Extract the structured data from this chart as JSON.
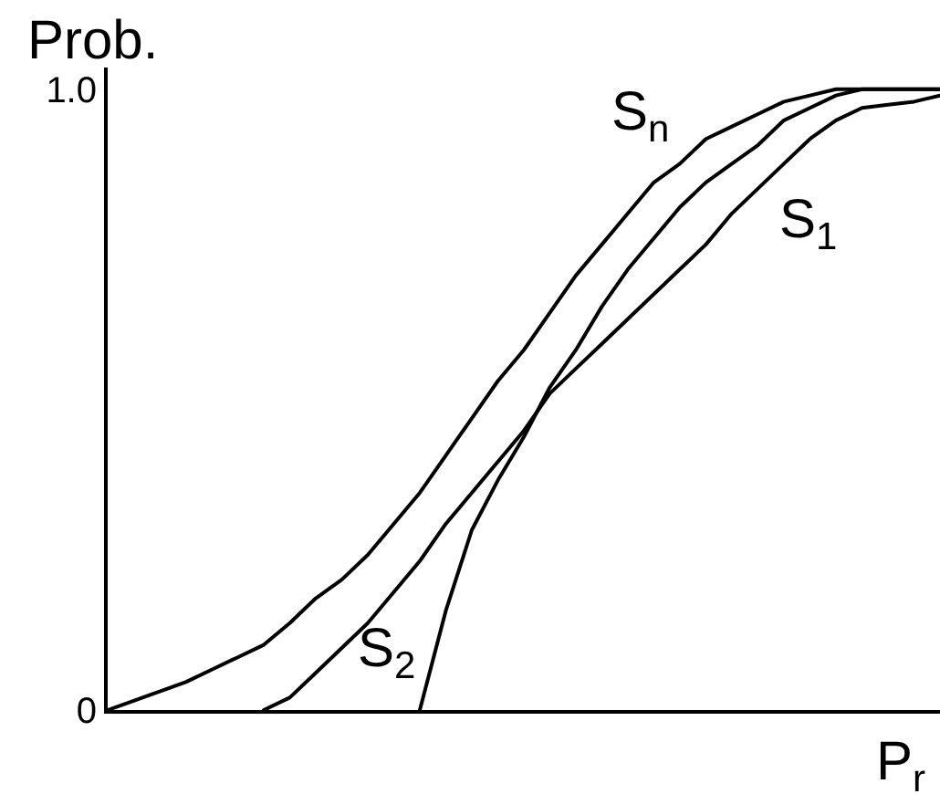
{
  "chart_data": {
    "type": "line",
    "xlabel": "P$_{r}$",
    "ylabel": "Prob.",
    "categories": [
      null,
      null,
      null,
      null,
      null,
      null,
      null,
      null,
      null,
      null,
      null,
      null,
      null,
      null,
      null,
      null,
      null,
      null,
      null,
      null,
      null,
      null,
      null,
      null,
      null,
      null,
      null,
      null,
      null,
      null,
      null,
      null,
      null
    ],
    "series": [
      {
        "name": "S$_{n}$",
        "color": "#000000",
        "values": [
          0,
          0.015,
          0.03,
          0.045,
          0.065,
          0.085,
          0.105,
          0.14,
          0.18,
          0.21,
          0.25,
          0.3,
          0.35,
          0.41,
          0.47,
          0.53,
          0.58,
          0.64,
          0.7,
          0.75,
          0.8,
          0.85,
          0.88,
          0.92,
          0.94,
          0.96,
          0.98,
          0.99,
          1.0,
          1.0,
          1.0,
          1.0,
          1.0
        ]
      },
      {
        "name": "S$_{1}$",
        "color": "#000000",
        "values": [
          null,
          null,
          null,
          null,
          null,
          null,
          0,
          0.02,
          0.06,
          0.1,
          0.14,
          0.19,
          0.24,
          0.3,
          0.35,
          0.4,
          0.45,
          0.51,
          0.55,
          0.59,
          0.63,
          0.67,
          0.71,
          0.75,
          0.8,
          0.84,
          0.88,
          0.92,
          0.95,
          0.97,
          0.975,
          0.98,
          0.99
        ]
      },
      {
        "name": "S$_{2}$",
        "color": "#000000",
        "values": [
          null,
          null,
          null,
          null,
          null,
          null,
          null,
          null,
          null,
          null,
          null,
          null,
          0,
          0.16,
          0.29,
          0.37,
          0.44,
          0.52,
          0.58,
          0.65,
          0.71,
          0.76,
          0.81,
          0.85,
          0.88,
          0.91,
          0.95,
          0.97,
          0.99,
          1.0,
          1.0,
          1.0,
          1.0
        ]
      }
    ],
    "ylim": [
      0,
      1.035
    ],
    "yticks": [
      0,
      {
        "value": 1,
        "label": "1.0"
      }
    ],
    "tick_labels": "y",
    "grid": false,
    "legend": false,
    "line_style": "solid"
  }
}
